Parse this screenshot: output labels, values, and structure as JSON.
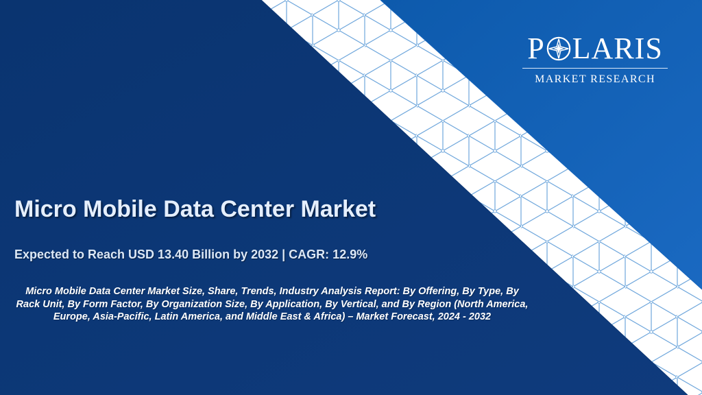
{
  "brand": {
    "logo_left": "P",
    "logo_right": "LARIS",
    "logo_subtitle": "MARKET RESEARCH"
  },
  "content": {
    "title": "Micro Mobile Data Center Market",
    "subtitle": "Expected to Reach USD 13.40 Billion by 2032 | CAGR: 12.9%",
    "description": "Micro Mobile Data Center Market Size, Share, Trends, Industry Analysis Report: By Offering, By Type, By Rack Unit, By Form Factor, By Organization Size, By Application, By Vertical, and By Region (North America, Europe, Asia-Pacific, Latin America, and Middle East & Africa) – Market Forecast, 2024 - 2032"
  },
  "colors": {
    "left_panel": "#0c3673",
    "right_panel": "#1664bb",
    "diagonal_band": "#ffffff",
    "cube_lines": "#6fa7dc",
    "title_text": "#e5efff"
  },
  "icons": {
    "logo_mark": "compass-star-icon",
    "background_pattern": "isometric-cube-pattern"
  }
}
